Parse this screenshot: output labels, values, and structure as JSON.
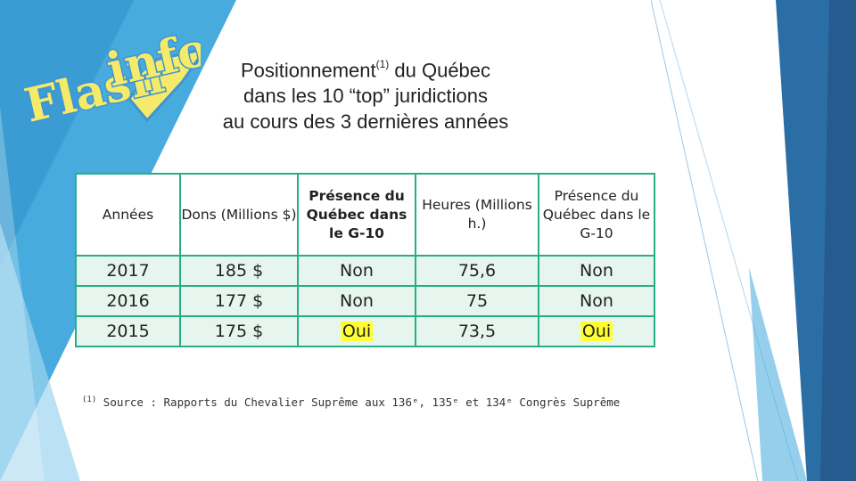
{
  "logo": {
    "word1": "Flash",
    "word2": "info"
  },
  "title": {
    "line1_before": "Positionnement",
    "line1_sup": "(1)",
    "line1_after": " du Québec",
    "line2": "dans les 10 “top” juridictions",
    "line3": "au cours des 3 dernières années"
  },
  "table": {
    "headers": [
      "Années",
      "Dons (Millions $)",
      "Présence du Québec dans le G-10",
      "Heures (Millions h.)",
      "Présence du Québec dans le G-10"
    ],
    "rows": [
      [
        "2017",
        "185 $",
        "Non",
        "75,6",
        "Non"
      ],
      [
        "2016",
        "177 $",
        "Non",
        "75",
        "Non"
      ],
      [
        "2015",
        "175 $",
        "Oui",
        "73,5",
        "Oui"
      ]
    ]
  },
  "footnote": {
    "marker": "(1)",
    "text": "Source : Rapports du Chevalier Suprême aux 136ᵉ, 135ᵉ et 134ᵉ Congrès Suprême"
  },
  "colors": {
    "table_border": "#27ae88",
    "row_fill": "#e6f6ee",
    "highlight": "#ffff33",
    "deco_blue": "#3b9fd6",
    "deco_navy": "#2a6aa0"
  }
}
